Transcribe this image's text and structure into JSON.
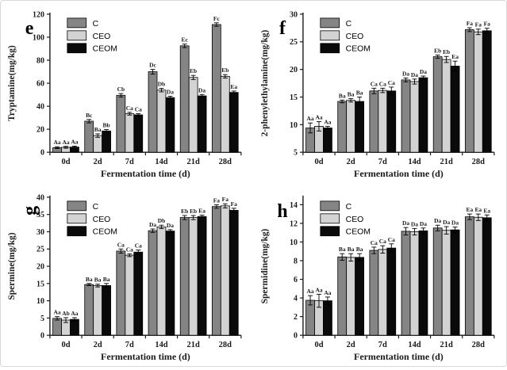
{
  "figure": {
    "xlabel": "Fermentation time (d)",
    "legend": [
      "C",
      "CEO",
      "CEOM"
    ],
    "colors": {
      "C": "#858585",
      "CEO": "#d3d3d3",
      "CEOM": "#0a0a0a"
    },
    "axis_color": "#1a1a1a",
    "categories": [
      "0d",
      "2d",
      "7d",
      "14d",
      "21d",
      "28d"
    ]
  },
  "chart_data": [
    {
      "type": "bar",
      "panel_letter": "e",
      "letter_rotated": false,
      "title": "",
      "ylabel": "Tryptamine(mg/kg)",
      "xlabel": "Fermentation time (d)",
      "categories": [
        "0d",
        "2d",
        "7d",
        "14d",
        "21d",
        "28d"
      ],
      "ylim": [
        0,
        120
      ],
      "yticks": [
        0,
        20,
        40,
        60,
        80,
        100,
        120
      ],
      "grid": false,
      "legend_position": "top-left",
      "series": [
        {
          "name": "C",
          "color": "#858585",
          "values": [
            4.0,
            27.0,
            49.5,
            70.0,
            92.5,
            111.0
          ],
          "errors": [
            0.8,
            1.5,
            1.5,
            2.0,
            1.5,
            1.5
          ],
          "sig": [
            "Aa",
            "Bc",
            "Cb",
            "Dc",
            "Ec",
            "Fc"
          ]
        },
        {
          "name": "CEO",
          "color": "#d3d3d3",
          "values": [
            4.3,
            14.5,
            33.5,
            54.0,
            65.0,
            66.0
          ],
          "errors": [
            0.8,
            1.5,
            1.2,
            1.5,
            1.8,
            1.5
          ],
          "sig": [
            "Aa",
            "Ba",
            "Ca",
            "Db",
            "Eb",
            "Eb"
          ]
        },
        {
          "name": "CEOM",
          "color": "#0a0a0a",
          "values": [
            4.5,
            18.5,
            32.5,
            47.5,
            49.0,
            52.0
          ],
          "errors": [
            0.8,
            1.2,
            1.0,
            1.2,
            1.2,
            1.2
          ],
          "sig": [
            "Aa",
            "Bb",
            "Ca",
            "Da",
            "Da",
            "Ea"
          ]
        }
      ]
    },
    {
      "type": "bar",
      "panel_letter": "f",
      "letter_rotated": false,
      "title": "",
      "ylabel": "2-phenylethylamine(mg/kg)",
      "xlabel": "Fermentation time (d)",
      "categories": [
        "0d",
        "2d",
        "7d",
        "14d",
        "21d",
        "28d"
      ],
      "ylim": [
        5,
        30
      ],
      "yticks": [
        5,
        10,
        15,
        20,
        25,
        30
      ],
      "grid": false,
      "legend_position": "top-left",
      "series": [
        {
          "name": "C",
          "color": "#858585",
          "values": [
            9.4,
            14.2,
            16.1,
            18.1,
            22.3,
            27.2
          ],
          "errors": [
            0.9,
            0.25,
            0.5,
            0.35,
            0.3,
            0.35
          ],
          "sig": [
            "Aa",
            "Ba",
            "Ca",
            "Da",
            "Eb",
            "Fa"
          ]
        },
        {
          "name": "CEO",
          "color": "#d3d3d3",
          "values": [
            9.7,
            14.4,
            16.2,
            17.8,
            21.8,
            26.8
          ],
          "errors": [
            0.85,
            0.3,
            0.4,
            0.45,
            0.55,
            0.5
          ],
          "sig": [
            "Aa",
            "Ba",
            "Ca",
            "Da",
            "Eb",
            "Fa"
          ]
        },
        {
          "name": "CEOM",
          "color": "#0a0a0a",
          "values": [
            9.4,
            14.2,
            16.1,
            18.5,
            20.6,
            27.0
          ],
          "errors": [
            0.3,
            0.8,
            0.7,
            0.3,
            0.9,
            0.45
          ],
          "sig": [
            "Aa",
            "Ba",
            "Ca",
            "Da",
            "Ea",
            "Fa"
          ]
        }
      ]
    },
    {
      "type": "bar",
      "panel_letter": "g",
      "letter_rotated": true,
      "title": "",
      "ylabel": "Spermine(mg/kg)",
      "xlabel": "Fermentation time (d)",
      "categories": [
        "0d",
        "2d",
        "7d",
        "14d",
        "21d",
        "28d"
      ],
      "ylim": [
        0,
        40
      ],
      "yticks": [
        0,
        5,
        10,
        15,
        20,
        25,
        30,
        35,
        40
      ],
      "grid": false,
      "legend_position": "top-left",
      "series": [
        {
          "name": "C",
          "color": "#858585",
          "values": [
            4.9,
            14.7,
            24.4,
            30.3,
            34.1,
            37.3
          ],
          "errors": [
            0.5,
            0.3,
            0.6,
            0.5,
            0.6,
            0.5
          ],
          "sig": [
            "Aa",
            "Ba",
            "Ca",
            "Da",
            "Eb",
            "Fa"
          ]
        },
        {
          "name": "CEO",
          "color": "#d3d3d3",
          "values": [
            4.4,
            14.4,
            23.2,
            31.4,
            34.1,
            37.5
          ],
          "errors": [
            0.7,
            0.4,
            0.4,
            0.5,
            0.6,
            0.6
          ],
          "sig": [
            "Ab",
            "Ba",
            "Ca",
            "Db",
            "Eb",
            "Fa"
          ]
        },
        {
          "name": "CEOM",
          "color": "#0a0a0a",
          "values": [
            4.6,
            14.4,
            24.1,
            30.2,
            34.4,
            36.2
          ],
          "errors": [
            0.5,
            0.6,
            0.6,
            0.4,
            0.4,
            0.6
          ],
          "sig": [
            "Aa",
            "Ba",
            "Ca",
            "Da",
            "Ea",
            "Fa"
          ]
        }
      ]
    },
    {
      "type": "bar",
      "panel_letter": "h",
      "letter_rotated": false,
      "title": "",
      "ylabel": "Spermidine(mg/kg)",
      "xlabel": "Fermentation time (d)",
      "categories": [
        "0d",
        "2d",
        "7d",
        "14d",
        "21d",
        "28d"
      ],
      "ylim": [
        0,
        14.8
      ],
      "yticks": [
        0,
        2,
        4,
        6,
        8,
        10,
        12,
        14
      ],
      "grid": false,
      "legend_position": "top-left",
      "series": [
        {
          "name": "C",
          "color": "#858585",
          "values": [
            3.75,
            8.4,
            9.1,
            11.15,
            11.5,
            12.7
          ],
          "errors": [
            0.5,
            0.35,
            0.35,
            0.4,
            0.3,
            0.3
          ],
          "sig": [
            "Aa",
            "Ba",
            "Ca",
            "Da",
            "Da",
            "Ea"
          ]
        },
        {
          "name": "CEO",
          "color": "#d3d3d3",
          "values": [
            3.7,
            8.35,
            9.2,
            11.1,
            11.25,
            12.65
          ],
          "errors": [
            0.7,
            0.4,
            0.4,
            0.35,
            0.4,
            0.35
          ],
          "sig": [
            "Aa",
            "Ba",
            "Ca",
            "Da",
            "Da",
            "Ea"
          ]
        },
        {
          "name": "CEOM",
          "color": "#0a0a0a",
          "values": [
            3.7,
            8.35,
            9.35,
            11.2,
            11.3,
            12.6
          ],
          "errors": [
            0.4,
            0.4,
            0.45,
            0.3,
            0.3,
            0.3
          ],
          "sig": [
            "Aa",
            "Ba",
            "Ca",
            "Da",
            "Da",
            "Ea"
          ]
        }
      ]
    }
  ]
}
